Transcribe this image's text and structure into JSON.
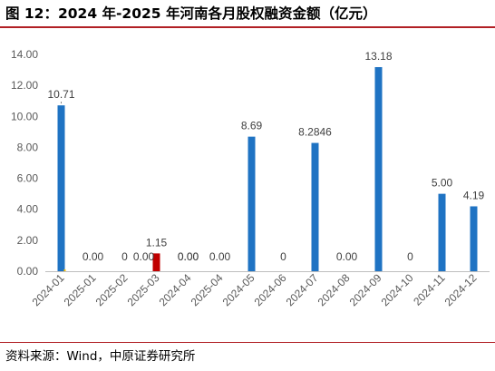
{
  "header": {
    "title": "图 12：2024 年-2025 年河南各月股权融资金额（亿元）"
  },
  "footer": {
    "source": "资料来源：Wind，中原证券研究所"
  },
  "colors": {
    "bar_primary": "#1f73c3",
    "bar_highlight": "#c00000",
    "accent_small": "#ffc000",
    "rule": "#b11f24",
    "axis_text": "#595959"
  },
  "chart_data": {
    "type": "bar",
    "title": "",
    "xlabel": "",
    "ylabel": "",
    "ylim": [
      0,
      14
    ],
    "yticks": [
      "0.00",
      "2.00",
      "4.00",
      "6.00",
      "8.00",
      "10.00",
      "12.00",
      "14.00"
    ],
    "grid": false,
    "legend": "none",
    "categories": [
      "2024-01",
      "2025-01",
      "2025-02",
      "2025-03",
      "2024-04",
      "2025-04",
      "2024-05",
      "2024-06",
      "2024-07",
      "2024-08",
      "2024-09",
      "2024-10",
      "2024-11",
      "2024-12"
    ],
    "values": [
      10.71,
      0,
      0,
      1.15,
      0,
      0,
      8.69,
      0,
      8.2846,
      0,
      13.18,
      0,
      5.0,
      4.19
    ],
    "labels": [
      "10.71",
      "0.00",
      "0",
      "1.15",
      "0.00",
      "0.00",
      "8.69",
      "0",
      "8.2846",
      "0.00",
      "13.18",
      "0",
      "5.00",
      "4.19"
    ],
    "extra_labels": [
      {
        "category": "2025-03",
        "text": "0.00"
      },
      {
        "category": "2024-04",
        "text": "0.00"
      }
    ],
    "highlight_category": "2025-03"
  }
}
